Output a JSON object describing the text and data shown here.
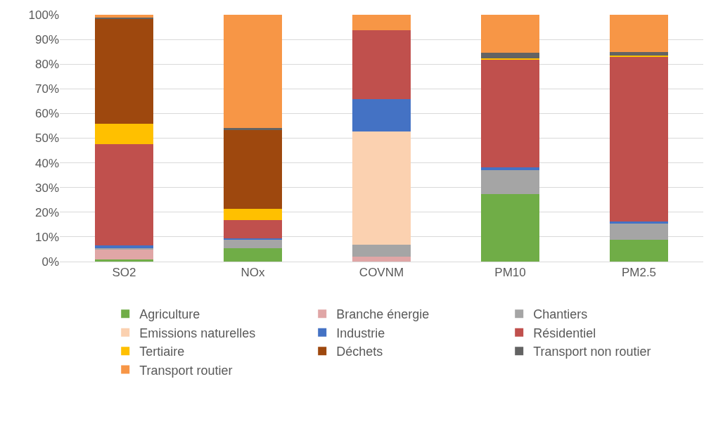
{
  "chart_data": {
    "type": "bar",
    "stacked": true,
    "categories": [
      "SO2",
      "NOx",
      "COVNM",
      "PM10",
      "PM2.5"
    ],
    "series": [
      {
        "name": "Agriculture",
        "color": "#70ad47",
        "values": [
          0.9,
          5.3,
          0,
          27.4,
          8.7
        ]
      },
      {
        "name": "Branche énergie",
        "color": "#e0a6a6",
        "values": [
          3.9,
          0,
          2.1,
          0,
          0
        ]
      },
      {
        "name": "Chantiers",
        "color": "#a5a5a5",
        "values": [
          0.6,
          3.6,
          4.6,
          9.7,
          6.6
        ]
      },
      {
        "name": "Emissions naturelles",
        "color": "#fbd1b0",
        "values": [
          0,
          0,
          45.9,
          0,
          0
        ]
      },
      {
        "name": "Industrie",
        "color": "#4472c4",
        "values": [
          1.1,
          0.4,
          13.2,
          1.2,
          0.8
        ]
      },
      {
        "name": "Résidentiel",
        "color": "#c0504d",
        "values": [
          41.2,
          7.4,
          28.0,
          43.6,
          66.7
        ]
      },
      {
        "name": "Tertiaire",
        "color": "#ffc000",
        "values": [
          8.2,
          4.8,
          0,
          0.5,
          0.6
        ]
      },
      {
        "name": "Déchets",
        "color": "#9e480e",
        "values": [
          42.3,
          32.0,
          0,
          0,
          0
        ]
      },
      {
        "name": "Transport non routier",
        "color": "#636363",
        "values": [
          0.7,
          0.5,
          0,
          2.1,
          1.4
        ]
      },
      {
        "name": "Transport routier",
        "color": "#f79646",
        "values": [
          1.1,
          46.0,
          6.2,
          15.5,
          15.2
        ]
      }
    ],
    "ylim": [
      0,
      100
    ],
    "yticks": [
      {
        "value": 0,
        "label": "0%"
      },
      {
        "value": 10,
        "label": "10%"
      },
      {
        "value": 20,
        "label": "20%"
      },
      {
        "value": 30,
        "label": "30%"
      },
      {
        "value": 40,
        "label": "40%"
      },
      {
        "value": 50,
        "label": "50%"
      },
      {
        "value": 60,
        "label": "60%"
      },
      {
        "value": 70,
        "label": "70%"
      },
      {
        "value": 80,
        "label": "80%"
      },
      {
        "value": 90,
        "label": "90%"
      },
      {
        "value": 100,
        "label": "100%"
      }
    ],
    "grid": "y",
    "legend": "bottom"
  }
}
